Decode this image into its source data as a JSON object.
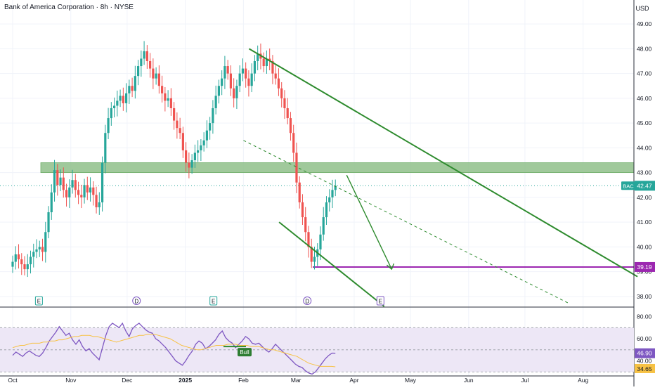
{
  "header": {
    "title": "Bank of America Corporation · 8h · NYSE",
    "currency": "USD"
  },
  "colors": {
    "up": "#26a69a",
    "down": "#ef5350",
    "trendline": "#2e8b2e",
    "zone": "#8fc08a",
    "support": "#9c27b0",
    "rsi_line": "#7e57c2",
    "rsi_ma": "#f7c244",
    "rsi_band": "#ede7f6"
  },
  "chart_data": [
    {
      "type": "candlestick",
      "symbol": "BAC",
      "last_price": 42.47,
      "ylim": [
        37.6,
        49.4
      ],
      "y_ticks": [
        "49.00",
        "48.00",
        "47.00",
        "46.00",
        "45.00",
        "44.00",
        "43.00",
        "42.00",
        "41.00",
        "40.00",
        "39.00",
        "38.00"
      ],
      "x_ticks": [
        "Oct",
        "Nov",
        "Dec",
        "2025",
        "Feb",
        "Mar",
        "Apr",
        "May",
        "Jun",
        "Jul",
        "Aug"
      ],
      "price_labels": [
        {
          "text": "BAC",
          "value": "42.47",
          "price": 42.47
        },
        {
          "text": "",
          "value": "39.19",
          "price": 39.19
        }
      ],
      "support_level": 39.19,
      "resistance_zone": [
        43.0,
        43.4
      ],
      "event_markers": [
        {
          "label": "E",
          "date": "Oct 15"
        },
        {
          "label": "D",
          "date": "Dec 6"
        },
        {
          "label": "E",
          "date": "Jan 16"
        },
        {
          "label": "D",
          "date": "Mar 7"
        },
        {
          "label": "E",
          "date": "Apr 15"
        }
      ],
      "candles_close": [
        39.4,
        39.7,
        39.5,
        39.3,
        39.1,
        39.3,
        39.6,
        39.8,
        39.9,
        40.0,
        39.8,
        40.6,
        41.4,
        42.2,
        43.1,
        42.5,
        42.8,
        42.3,
        42.0,
        42.4,
        42.7,
        42.3,
        42.1,
        42.0,
        42.5,
        42.2,
        42.4,
        42.1,
        41.6,
        41.8,
        43.4,
        44.6,
        45.2,
        45.6,
        45.7,
        45.9,
        46.1,
        45.8,
        46.2,
        46.5,
        46.3,
        46.9,
        47.3,
        47.6,
        47.9,
        47.5,
        47.2,
        46.8,
        47.0,
        46.5,
        46.2,
        45.9,
        46.0,
        45.6,
        45.1,
        44.8,
        44.6,
        43.9,
        43.4,
        43.2,
        43.5,
        43.8,
        43.9,
        44.1,
        44.3,
        44.7,
        45.0,
        45.6,
        46.1,
        46.5,
        46.8,
        47.3,
        47.0,
        46.4,
        46.0,
        46.5,
        47.0,
        47.2,
        46.8,
        46.5,
        47.0,
        47.5,
        47.8,
        47.6,
        47.3,
        47.6,
        47.5,
        47.0,
        46.8,
        46.4,
        46.0,
        45.6,
        45.2,
        44.6,
        43.8,
        42.6,
        41.8,
        41.2,
        40.6,
        40.0,
        39.4,
        39.6,
        39.9,
        40.5,
        41.2,
        41.8,
        42.0,
        42.3,
        42.47
      ],
      "trendlines": [
        {
          "name": "upper-channel",
          "from": [
            "Feb 4",
            48.0
          ],
          "to": [
            "Aug 30",
            38.8
          ]
        },
        {
          "name": "lower-channel",
          "from": [
            "Feb 20",
            41.0
          ],
          "to": [
            "Apr 17",
            37.6
          ]
        },
        {
          "name": "projection-arrow",
          "from": [
            "Mar 28",
            42.9
          ],
          "to": [
            "Apr 21",
            39.1
          ]
        },
        {
          "name": "dashed-midline",
          "from": [
            "Feb 1",
            44.3
          ],
          "to": [
            "Jul 25",
            37.7
          ]
        }
      ]
    },
    {
      "type": "line",
      "name": "RSI",
      "ylim": [
        27,
        88
      ],
      "y_ticks": [
        "80.00",
        "60.00",
        "40.00"
      ],
      "bands": [
        70,
        30
      ],
      "mid": 50,
      "rsi_value": "46.90",
      "rsi_ma_value": "34.65",
      "rsi": [
        45,
        48,
        46,
        44,
        47,
        49,
        47,
        45,
        44,
        47,
        52,
        58,
        62,
        66,
        71,
        67,
        63,
        65,
        59,
        55,
        59,
        53,
        49,
        51,
        47,
        44,
        41,
        52,
        63,
        71,
        74,
        72,
        70,
        74,
        67,
        62,
        69,
        72,
        74,
        71,
        68,
        66,
        65,
        60,
        58,
        55,
        52,
        48,
        44,
        40,
        38,
        36,
        40,
        45,
        49,
        55,
        58,
        56,
        51,
        53,
        56,
        59,
        64,
        67,
        61,
        58,
        56,
        52,
        55,
        58,
        62,
        60,
        56,
        55,
        56,
        53,
        50,
        48,
        51,
        55,
        52,
        49,
        46,
        43,
        40,
        37,
        35,
        34,
        31,
        29,
        28,
        30,
        34,
        38,
        42,
        45,
        47,
        46.9
      ],
      "rsi_ma": [
        52,
        53,
        54,
        54,
        55,
        56,
        56,
        56,
        57,
        57,
        58,
        58,
        59,
        59,
        60,
        61,
        62,
        62,
        63,
        63,
        63,
        62,
        62,
        61,
        60,
        59,
        58,
        57,
        58,
        59,
        60,
        61,
        62,
        63,
        63,
        64,
        64,
        64,
        63,
        62,
        61,
        60,
        58,
        56,
        54,
        53,
        52,
        51,
        50,
        50,
        51,
        52,
        53,
        54,
        54,
        54,
        55,
        55,
        55,
        54,
        54,
        54,
        53,
        53,
        53,
        52,
        51,
        50,
        50,
        49,
        48,
        47,
        46,
        45,
        44,
        42,
        40,
        38,
        37,
        36,
        35,
        35,
        35,
        35,
        34.65
      ],
      "annotation": "Bull"
    }
  ]
}
